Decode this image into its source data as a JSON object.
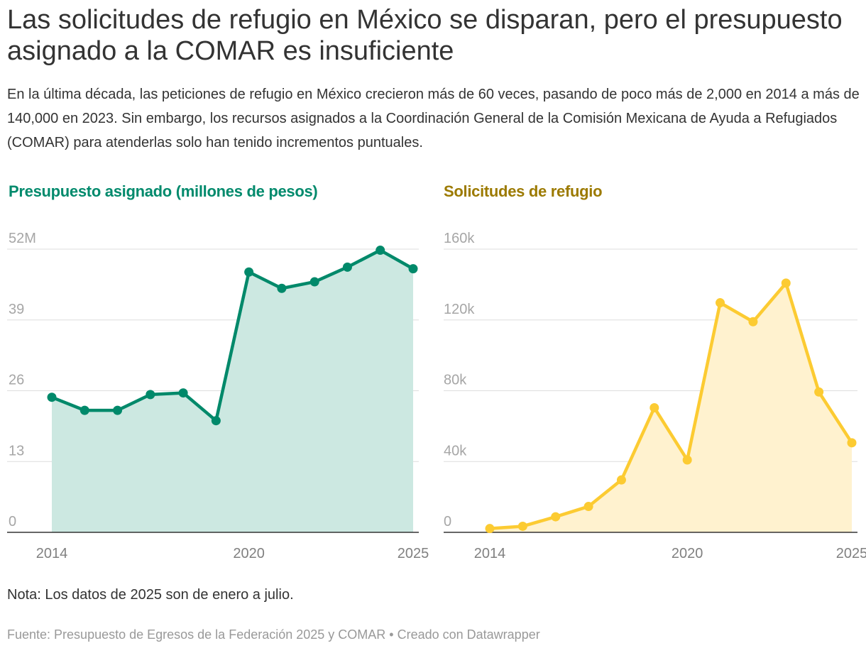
{
  "headline": "Las solicitudes de refugio en México se disparan, pero el presupuesto asignado a la COMAR es insuficiente",
  "intro": "En la última década, las peticiones de refugio en México crecieron más de 60 veces, pasando de poco más de 2,000 en 2014 a más de 140,000 en 2023. Sin embargo, los recursos asignados a la Coordinación General de la Comisión Mexicana de Ayuda a Refugiados (COMAR) para atenderlas solo han tenido incrementos puntuales.",
  "note": "Nota: Los datos de 2025 son de enero a julio.",
  "footer": "Fuente: Presupuesto de Egresos de la Federación 2025 y COMAR • Creado con Datawrapper",
  "colors": {
    "budget_line": "#00896a",
    "budget_fill": "#cce8e1",
    "budget_title": "#008a6c",
    "requests_line": "#fccb32",
    "requests_fill": "#fff2cf",
    "requests_title": "#9c7a00",
    "grid": "#dddddd",
    "baseline": "#333333"
  },
  "chart_data": [
    {
      "type": "area",
      "title": "Presupuesto asignado (millones de pesos)",
      "x": [
        2014,
        2015,
        2016,
        2017,
        2018,
        2019,
        2020,
        2021,
        2022,
        2023,
        2024,
        2025
      ],
      "series": [
        {
          "name": "Presupuesto asignado",
          "values": [
            24.8,
            22.4,
            22.4,
            25.3,
            25.6,
            20.5,
            47.8,
            44.8,
            46.0,
            48.7,
            51.8,
            48.4
          ]
        }
      ],
      "ylim": [
        0,
        52
      ],
      "yticks": [
        0,
        13,
        26,
        39,
        52
      ],
      "ytick_labels": [
        "0",
        "13",
        "26",
        "39",
        "52M"
      ],
      "xticks": [
        2014,
        2020,
        2025
      ],
      "xtick_labels": [
        "2014",
        "2020",
        "2025"
      ],
      "grid": true
    },
    {
      "type": "area",
      "title": "Solicitudes de refugio",
      "x": [
        2014,
        2015,
        2016,
        2017,
        2018,
        2019,
        2020,
        2021,
        2022,
        2023,
        2024,
        2025
      ],
      "series": [
        {
          "name": "Solicitudes de refugio",
          "values": [
            2137,
            3423,
            8796,
            14619,
            29600,
            70400,
            40900,
            129700,
            119000,
            140800,
            79300,
            50600
          ]
        }
      ],
      "ylim": [
        0,
        160000
      ],
      "yticks": [
        0,
        40000,
        80000,
        120000,
        160000
      ],
      "ytick_labels": [
        "0",
        "40k",
        "80k",
        "120k",
        "160k"
      ],
      "xticks": [
        2014,
        2020,
        2025
      ],
      "xtick_labels": [
        "2014",
        "2020",
        "2025"
      ],
      "grid": true
    }
  ]
}
